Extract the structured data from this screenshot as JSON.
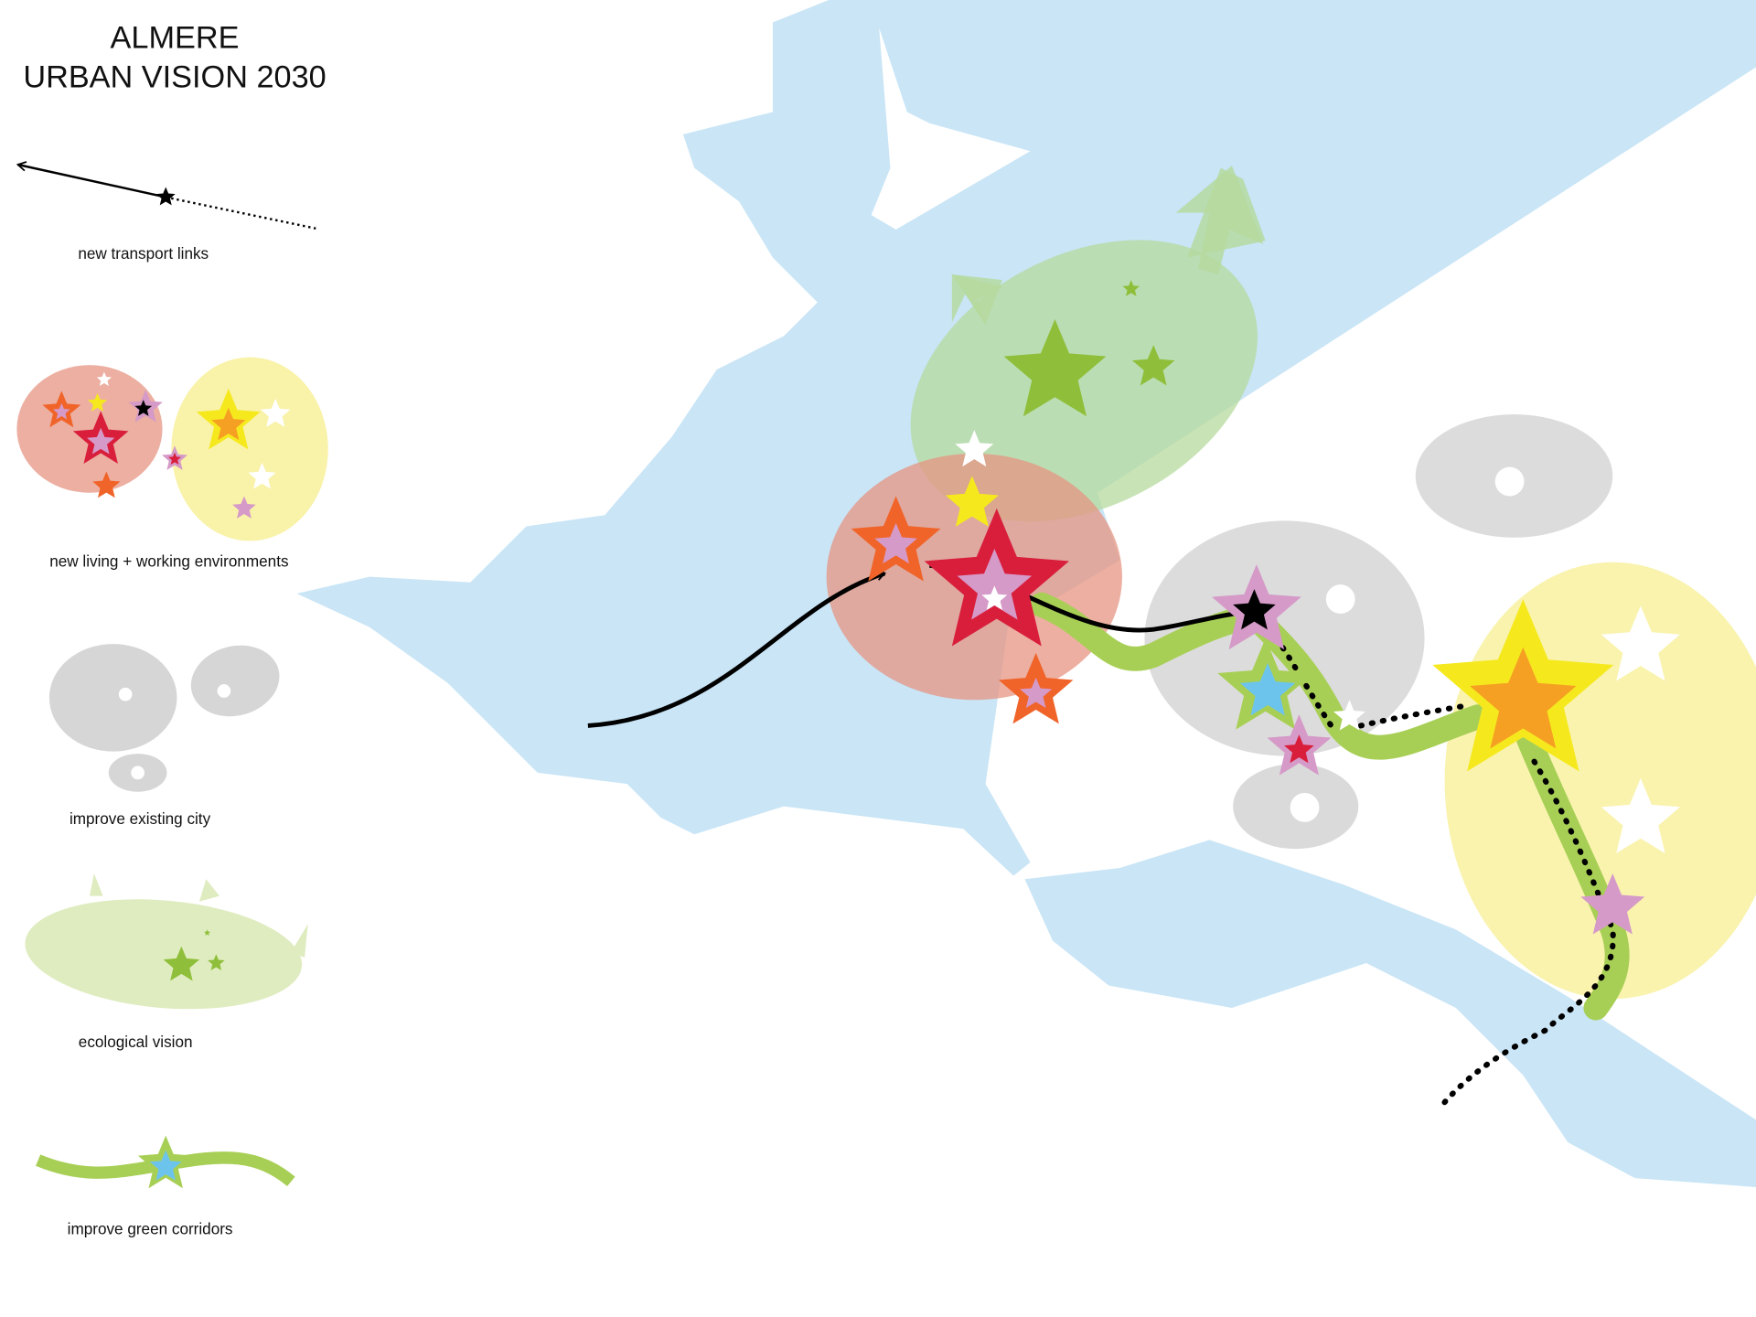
{
  "title": {
    "line1": "ALMERE",
    "line2": "URBAN VISION 2030"
  },
  "legend": [
    {
      "label": "new transport links"
    },
    {
      "label": "new living + working environments"
    },
    {
      "label": "improve existing city"
    },
    {
      "label": "ecological vision"
    },
    {
      "label": "improve green corridors"
    }
  ]
}
